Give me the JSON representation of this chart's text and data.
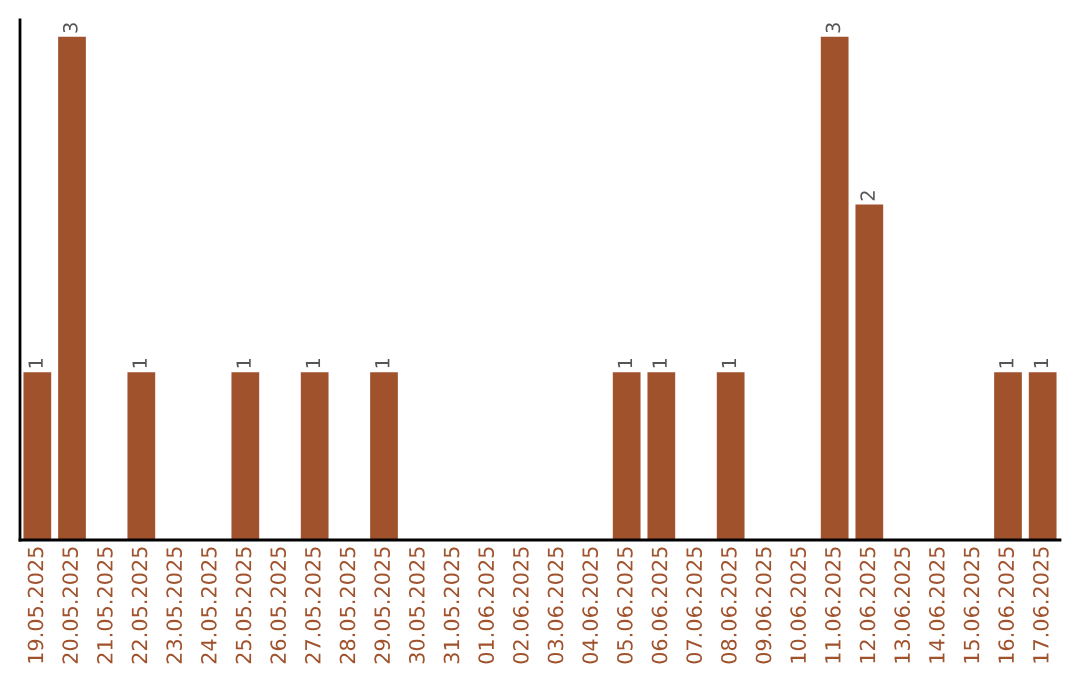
{
  "chart_data": {
    "type": "bar",
    "categories": [
      "19.05.2025",
      "20.05.2025",
      "21.05.2025",
      "22.05.2025",
      "23.05.2025",
      "24.05.2025",
      "25.05.2025",
      "26.05.2025",
      "27.05.2025",
      "28.05.2025",
      "29.05.2025",
      "30.05.2025",
      "31.05.2025",
      "01.06.2025",
      "02.06.2025",
      "03.06.2025",
      "04.06.2025",
      "05.06.2025",
      "06.06.2025",
      "07.06.2025",
      "08.06.2025",
      "09.06.2025",
      "10.06.2025",
      "11.06.2025",
      "12.06.2025",
      "13.06.2025",
      "14.06.2025",
      "15.06.2025",
      "16.06.2025",
      "17.06.2025"
    ],
    "values": [
      1,
      3,
      null,
      1,
      null,
      null,
      1,
      null,
      1,
      null,
      1,
      null,
      null,
      null,
      null,
      null,
      null,
      1,
      1,
      null,
      1,
      null,
      null,
      3,
      2,
      null,
      null,
      null,
      1,
      1
    ],
    "value_labels": [
      "1",
      "3",
      null,
      "1",
      null,
      null,
      "1",
      null,
      "1",
      null,
      "1",
      null,
      null,
      null,
      null,
      null,
      null,
      "1",
      "1",
      null,
      "1",
      null,
      null,
      "3",
      "2",
      null,
      null,
      null,
      "1",
      "1"
    ],
    "color": "#a0522d",
    "ylim": [
      0,
      3.1
    ],
    "tick_labels": "x",
    "grid": false,
    "legend": false
  }
}
